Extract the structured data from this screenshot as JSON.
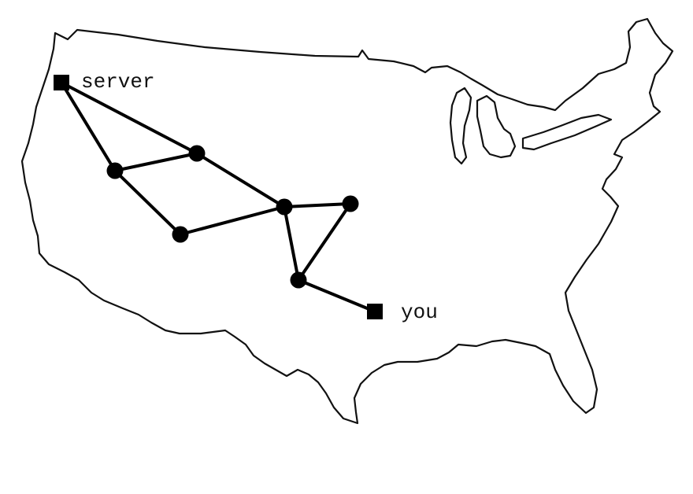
{
  "map": {
    "region": "United States"
  },
  "endpoints": {
    "server": {
      "label": "server"
    },
    "you": {
      "label": "you"
    }
  },
  "colors": {
    "ink": "#000000",
    "background": "#ffffff"
  },
  "icons": {
    "endpoint": "filled-square",
    "router": "filled-circle"
  }
}
